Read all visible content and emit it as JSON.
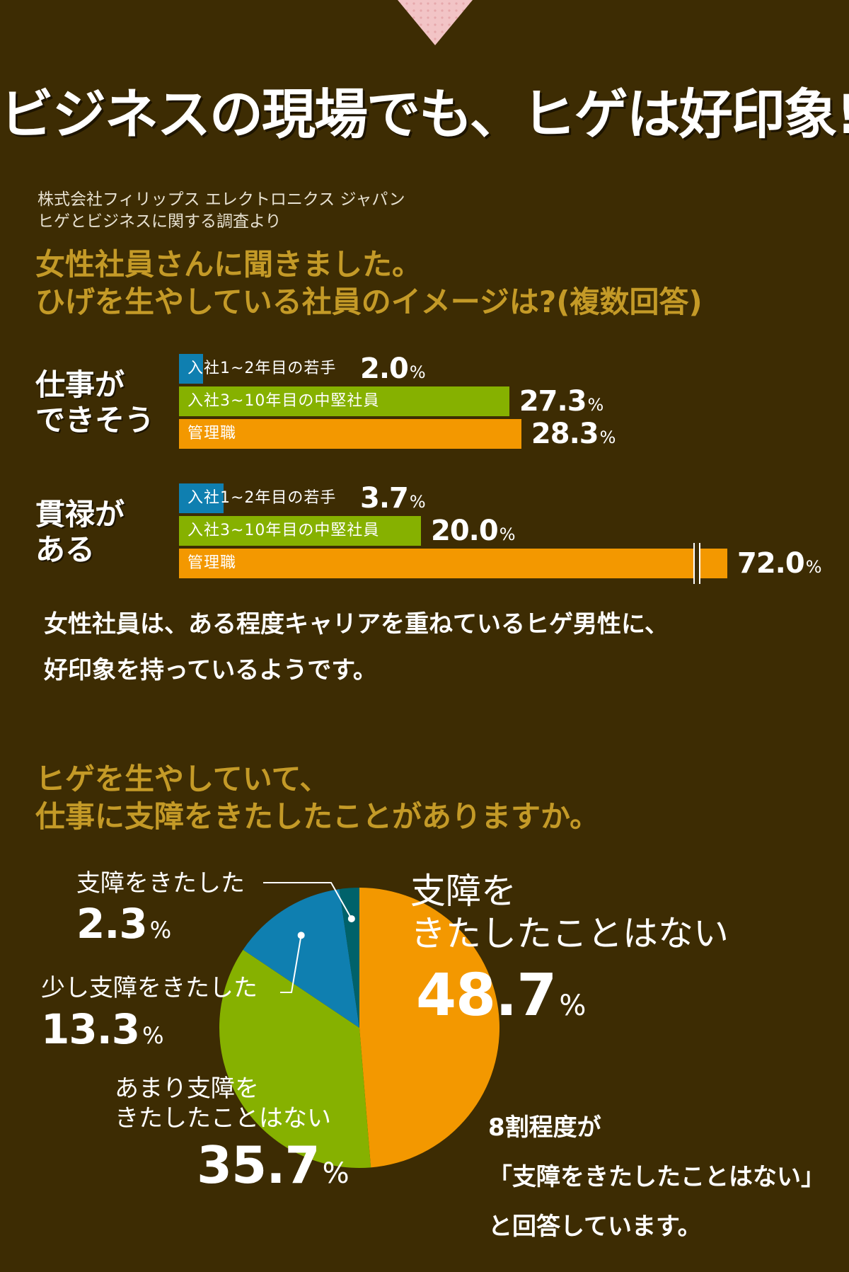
{
  "title": "ビジネスの現場でも、ヒゲは好印象!",
  "source": {
    "line1": "株式会社フィリップス エレクトロニクス ジャパン",
    "line2": "ヒゲとビジネスに関する調査より"
  },
  "question1": {
    "line1": "女性社員さんに聞きました。",
    "line2": "ひげを生やしている社員のイメージは?(複数回答)"
  },
  "comment1": {
    "line1": "女性社員は、ある程度キャリアを重ねているヒゲ男性に、",
    "line2": "好印象を持っているようです。"
  },
  "question2": {
    "line1": "ヒゲを生やしていて、",
    "line2": "仕事に支障をきたしたことがありますか。"
  },
  "conclusion": {
    "line1": "8割程度が",
    "line2": "「支障をきたしたことはない」",
    "line3": "と回答しています。"
  },
  "colors": {
    "background": "#3d2c03",
    "heading_gold": "#c49a27",
    "young": "#0f7fb0",
    "mid": "#86b100",
    "manager": "#f39800",
    "teal": "#00626a"
  },
  "chart_data": [
    {
      "type": "bar",
      "orientation": "horizontal",
      "unit": "%",
      "categories": [
        "入社1~2年目の若手",
        "入社3~10年目の中堅社員",
        "管理職"
      ],
      "groups": [
        {
          "label_line1": "仕事が",
          "label_line2": "できそう",
          "values": [
            2.0,
            27.3,
            28.3
          ],
          "value_labels": [
            "2.0",
            "27.3",
            "28.3"
          ]
        },
        {
          "label_line1": "貫禄が",
          "label_line2": "ある",
          "values": [
            3.7,
            20.0,
            72.0
          ],
          "value_labels": [
            "3.7",
            "20.0",
            "72.0"
          ]
        }
      ],
      "colors": [
        "#0f7fb0",
        "#86b100",
        "#f39800"
      ],
      "axis_break": true
    },
    {
      "type": "pie",
      "unit": "%",
      "slices": [
        {
          "label": "支障をきたしたことはない",
          "label_line1": "支障を",
          "label_line2": "きたしたことはない",
          "value": 48.7,
          "value_label": "48.7",
          "color": "#f39800"
        },
        {
          "label": "あまり支障をきたしたことはない",
          "label_line1": "あまり支障を",
          "label_line2": "きたしたことはない",
          "value": 35.7,
          "value_label": "35.7",
          "color": "#86b100"
        },
        {
          "label": "少し支障をきたした",
          "label_line1": "少し支障をきたした",
          "label_line2": "",
          "value": 13.3,
          "value_label": "13.3",
          "color": "#0f7fb0"
        },
        {
          "label": "支障をきたした",
          "label_line1": "支障をきたした",
          "label_line2": "",
          "value": 2.3,
          "value_label": "2.3",
          "color": "#00626a"
        }
      ]
    }
  ]
}
